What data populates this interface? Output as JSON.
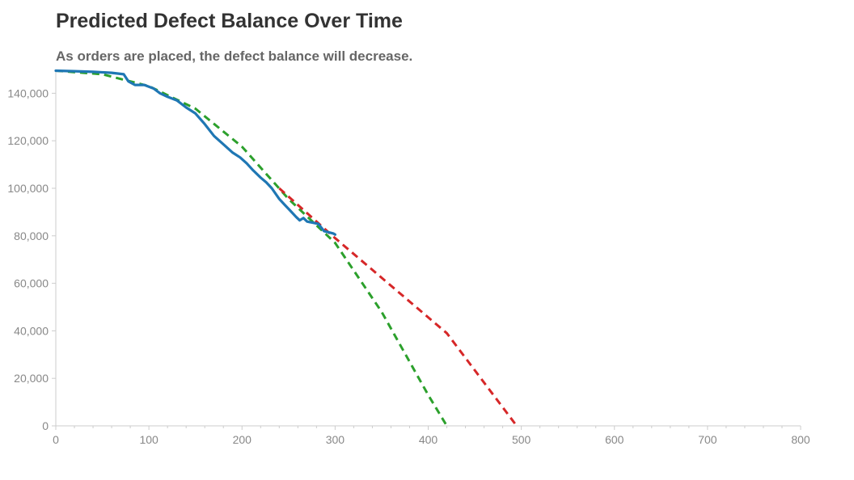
{
  "colors": {
    "actual": "#1f77b4",
    "linear_forecast": "#d62728",
    "quadratic_forecast": "#2ca02c",
    "axis": "#cccccc",
    "tick_text": "#888888"
  },
  "chart_data": {
    "type": "line",
    "title": "Predicted Defect Balance Over Time",
    "subtitle": "As orders are placed, the defect balance will decrease.",
    "xlabel": "",
    "ylabel": "",
    "xlim": [
      0,
      800
    ],
    "ylim": [
      0,
      150000
    ],
    "x_ticks": [
      0,
      100,
      200,
      300,
      400,
      500,
      600,
      700,
      800
    ],
    "y_ticks": [
      0,
      20000,
      40000,
      60000,
      80000,
      100000,
      120000,
      140000
    ],
    "x_tick_labels": [
      "0",
      "100",
      "200",
      "300",
      "400",
      "500",
      "600",
      "700",
      "800"
    ],
    "y_tick_labels": [
      "0",
      "20,000",
      "40,000",
      "60,000",
      "80,000",
      "100,000",
      "120,000",
      "140,000"
    ],
    "grid": false,
    "legend": "none",
    "series": [
      {
        "style": "solid",
        "color": "#1f77b4",
        "x": [
          0,
          20,
          40,
          60,
          73,
          78,
          85,
          95,
          105,
          112,
          120,
          130,
          140,
          150,
          160,
          170,
          180,
          190,
          198,
          205,
          212,
          220,
          226,
          232,
          240,
          246,
          252,
          258,
          262,
          266,
          270,
          276,
          282,
          288,
          293,
          298,
          300
        ],
        "y": [
          149500,
          149300,
          149000,
          148600,
          148000,
          145000,
          143500,
          143500,
          142000,
          140000,
          138500,
          137000,
          134000,
          131500,
          127000,
          122000,
          118500,
          115000,
          113000,
          110500,
          107500,
          104500,
          102500,
          100000,
          95500,
          93000,
          90500,
          88000,
          86500,
          87500,
          86000,
          85500,
          85000,
          82000,
          81500,
          81000,
          80500
        ]
      },
      {
        "style": "dashed",
        "color": "#d62728",
        "x": [
          240,
          300,
          360,
          420,
          495
        ],
        "y": [
          100000,
          79000,
          59000,
          39000,
          0
        ]
      },
      {
        "style": "dashed",
        "color": "#2ca02c",
        "x": [
          0,
          50,
          100,
          150,
          200,
          250,
          300,
          350,
          400,
          420
        ],
        "y": [
          149500,
          148000,
          143000,
          133500,
          117500,
          95500,
          77000,
          48000,
          13000,
          0
        ]
      }
    ]
  }
}
